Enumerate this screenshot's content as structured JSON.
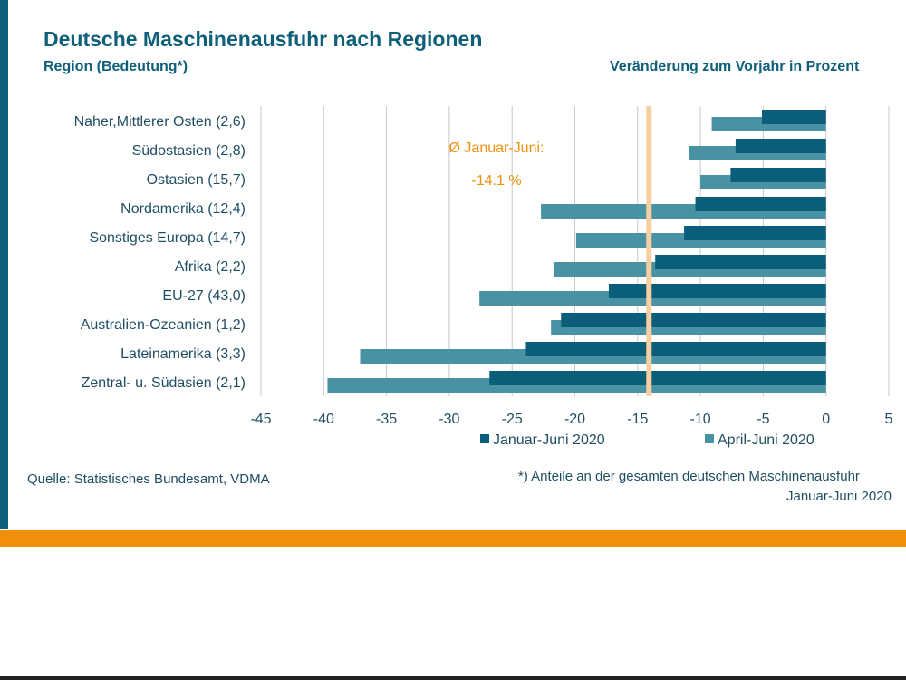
{
  "page": {
    "title": "Deutsche Maschinenausfuhr nach Regionen",
    "subtitle_left": "Region (Bedeutung*)",
    "subtitle_right": "Veränderung zum Vorjahr in Prozent",
    "source": "Quelle: Statistisches Bundesamt, VDMA",
    "footnote_line1": "*) Anteile an der gesamten deutschen Maschinenausfuhr",
    "footnote_line2": "Januar-Juni 2020"
  },
  "colors": {
    "frame": "#0e5f7a",
    "series_dark": "#0b5e79",
    "series_light": "#4892a3",
    "average_line": "#f8cfa2",
    "average_text": "#f0900a",
    "band": "#f0900a",
    "grid": "#c8c8c8"
  },
  "chart_data": {
    "type": "bar",
    "orientation": "horizontal",
    "categories": [
      "Naher,Mittlerer Osten (2,6)",
      "Südostasien (2,8)",
      "Ostasien (15,7)",
      "Nordamerika (12,4)",
      "Sonstiges Europa (14,7)",
      "Afrika (2,2)",
      "EU-27 (43,0)",
      "Australien-Ozeanien (1,2)",
      "Lateinamerika (3,3)",
      "Zentral- u. Südasien (2,1)"
    ],
    "series": [
      {
        "name": "Januar-Juni 2020",
        "values": [
          -5.1,
          -7.2,
          -7.6,
          -10.4,
          -11.3,
          -13.6,
          -17.3,
          -21.1,
          -23.9,
          -26.8
        ]
      },
      {
        "name": "April-Juni 2020",
        "values": [
          -9.1,
          -10.9,
          -10.0,
          -22.7,
          -19.9,
          -21.7,
          -27.6,
          -21.9,
          -37.1,
          -39.7
        ]
      }
    ],
    "xlim": [
      -45,
      5
    ],
    "ticks": [
      -45,
      -40,
      -35,
      -30,
      -25,
      -20,
      -15,
      -10,
      -5,
      0,
      5
    ],
    "tick_labels": [
      "-45",
      "-40",
      "-35",
      "-30",
      "-25",
      "-20",
      "-15",
      "-10",
      "-5",
      "0",
      "5"
    ],
    "grid": true,
    "legend_position": "bottom",
    "average": {
      "value": -14.1,
      "label_line1": "Ø Januar-Juni:",
      "label_line2": "-14.1 %"
    }
  }
}
